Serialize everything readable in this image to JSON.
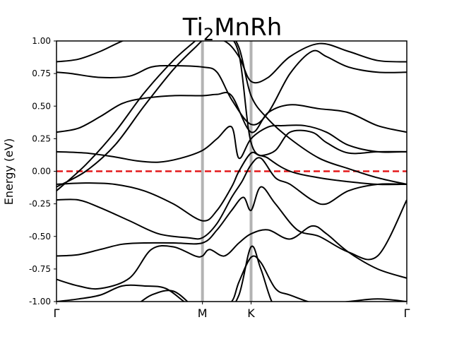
{
  "chart_data": {
    "type": "line",
    "title": {
      "main": "Ti",
      "sub": "2",
      "rest": "MnRh"
    },
    "ylabel": "Energy (eV)",
    "xlabel": "",
    "x_range": [
      0,
      2.4
    ],
    "ylim": [
      -1.0,
      1.0
    ],
    "y_ticks": [
      "-1.00",
      "-0.75",
      "-0.50",
      "-0.25",
      "0.00",
      "0.25",
      "0.50",
      "0.75",
      "1.00"
    ],
    "k_points": [
      {
        "label": "Γ",
        "x": 0.0
      },
      {
        "label": "M",
        "x": 1.0
      },
      {
        "label": "K",
        "x": 1.333
      },
      {
        "label": "Γ",
        "x": 2.4
      }
    ],
    "fermi_level": 0.0,
    "colors": {
      "bands": "#000000",
      "fermi": "#e41a1c",
      "kpath_lines": "#b3b3b3"
    },
    "series": [
      {
        "x": [
          0,
          0.15,
          0.3,
          0.5,
          0.7,
          0.85,
          1.0,
          1.15,
          1.25,
          1.333,
          1.45,
          1.6,
          1.8,
          2.0,
          2.2,
          2.4
        ],
        "y": [
          0.84,
          0.86,
          0.92,
          1.02,
          1.05,
          1.03,
          1.02,
          1.0,
          0.88,
          0.69,
          0.72,
          0.88,
          0.98,
          0.92,
          0.85,
          0.84
        ]
      },
      {
        "x": [
          0,
          0.1,
          0.3,
          0.5,
          0.65,
          0.8,
          1.0,
          1.1,
          1.2,
          1.333,
          1.45,
          1.6,
          1.75,
          1.85,
          2.0,
          2.2,
          2.4
        ],
        "y": [
          0.76,
          0.75,
          0.72,
          0.73,
          0.8,
          0.81,
          0.8,
          0.76,
          0.55,
          0.36,
          0.45,
          0.75,
          0.92,
          0.88,
          0.8,
          0.76,
          0.76
        ]
      },
      {
        "x": [
          0,
          0.15,
          0.3,
          0.45,
          0.6,
          0.8,
          1.0,
          1.1,
          1.2,
          1.333,
          1.45,
          1.6,
          1.8,
          2.0,
          2.2,
          2.4
        ],
        "y": [
          0.3,
          0.33,
          0.42,
          0.52,
          0.56,
          0.58,
          0.58,
          0.59,
          0.58,
          0.3,
          0.45,
          0.51,
          0.48,
          0.45,
          0.35,
          0.3
        ]
      },
      {
        "x": [
          0,
          0.2,
          0.4,
          0.55,
          0.7,
          0.85,
          1.0,
          1.1,
          1.2,
          1.25,
          1.333,
          1.45,
          1.55,
          1.7,
          1.85,
          2.0,
          2.2,
          2.4
        ],
        "y": [
          0.15,
          0.14,
          0.11,
          0.08,
          0.07,
          0.1,
          0.16,
          0.25,
          0.34,
          0.1,
          0.25,
          0.34,
          0.35,
          0.35,
          0.3,
          0.2,
          0.15,
          0.15
        ]
      },
      {
        "x": [
          0,
          0.2,
          0.4,
          0.6,
          0.8,
          1.0,
          1.1,
          1.2,
          1.25,
          1.333,
          1.4,
          1.5,
          1.6,
          1.75,
          1.85,
          2.0,
          2.2,
          2.4
        ],
        "y": [
          -0.1,
          -0.09,
          -0.1,
          -0.15,
          -0.25,
          -0.38,
          -0.3,
          -0.12,
          0.0,
          0.14,
          0.12,
          0.16,
          0.3,
          0.3,
          0.22,
          0.14,
          0.15,
          0.15
        ]
      },
      {
        "x": [
          0,
          0.15,
          0.3,
          0.5,
          0.7,
          0.9,
          1.0,
          1.1,
          1.2,
          1.27,
          1.333,
          1.4,
          1.5,
          1.6,
          1.75,
          1.85,
          2.0,
          2.2,
          2.4
        ],
        "y": [
          -0.22,
          -0.22,
          -0.28,
          -0.38,
          -0.48,
          -0.51,
          -0.51,
          -0.4,
          -0.2,
          -0.08,
          0.05,
          0.1,
          -0.05,
          -0.1,
          -0.22,
          -0.25,
          -0.15,
          -0.1,
          -0.1
        ]
      },
      {
        "x": [
          0,
          0.15,
          0.3,
          0.45,
          0.6,
          0.8,
          1.0,
          1.1,
          1.2,
          1.28,
          1.333,
          1.4,
          1.5,
          1.65,
          1.8,
          2.0,
          2.2,
          2.4
        ],
        "y": [
          -0.65,
          -0.64,
          -0.6,
          -0.56,
          -0.55,
          -0.55,
          -0.55,
          -0.45,
          -0.3,
          -0.2,
          -0.3,
          -0.12,
          -0.25,
          -0.45,
          -0.5,
          -0.62,
          -0.65,
          -0.22
        ]
      },
      {
        "x": [
          0,
          0.15,
          0.3,
          0.5,
          0.65,
          0.8,
          0.95,
          1.0,
          1.05,
          1.15,
          1.25,
          1.333,
          1.45,
          1.6,
          1.75,
          1.85,
          2.0,
          2.2,
          2.4
        ],
        "y": [
          -0.83,
          -0.88,
          -0.9,
          -0.82,
          -0.6,
          -0.58,
          -0.65,
          -0.65,
          -0.6,
          -0.65,
          -0.55,
          -0.48,
          -0.45,
          -0.52,
          -0.42,
          -0.48,
          -0.62,
          -0.75,
          -0.82
        ]
      },
      {
        "x": [
          0,
          0.15,
          0.3,
          0.45,
          0.6,
          0.75,
          0.9,
          1.0,
          1.1,
          1.2,
          1.25,
          1.333,
          1.4,
          1.5,
          1.6,
          1.8,
          2.0,
          2.2,
          2.4
        ],
        "y": [
          -1.0,
          -0.98,
          -0.95,
          -0.88,
          -0.88,
          -0.9,
          -1.02,
          -1.05,
          -1.05,
          -1.0,
          -0.85,
          -0.66,
          -0.7,
          -0.9,
          -0.95,
          -1.02,
          -1.0,
          -0.98,
          -1.0
        ]
      },
      {
        "x": [
          0,
          0.15,
          0.3,
          0.5,
          0.65,
          0.8,
          0.95,
          1.05,
          1.15,
          1.25,
          1.333,
          1.4,
          1.5,
          1.65,
          1.8,
          2.0,
          2.2,
          2.4
        ],
        "y": [
          -1.0,
          -1.02,
          -1.05,
          -1.05,
          -0.95,
          -0.92,
          -1.05,
          -1.1,
          -1.1,
          -0.95,
          -0.58,
          -0.75,
          -1.05,
          -1.1,
          -1.1,
          -1.08,
          -1.1,
          -1.05
        ]
      },
      {
        "x": [
          0,
          0.2,
          0.4,
          0.6,
          0.8,
          0.95,
          1.05,
          1.15,
          1.25,
          1.333,
          1.45,
          1.6,
          1.8,
          2.0,
          2.2,
          2.4
        ],
        "y": [
          -0.15,
          0.05,
          0.3,
          0.6,
          0.85,
          1.0,
          1.1,
          1.1,
          0.95,
          0.58,
          0.4,
          0.25,
          0.1,
          0.02,
          -0.05,
          -0.1
        ]
      },
      {
        "x": [
          0,
          0.2,
          0.4,
          0.6,
          0.8,
          0.95,
          1.05,
          1.15,
          1.25,
          1.333,
          1.45,
          1.6,
          1.8,
          2.0,
          2.2,
          2.4
        ],
        "y": [
          -0.12,
          0.0,
          0.2,
          0.5,
          0.78,
          0.95,
          1.05,
          1.05,
          0.9,
          0.22,
          0.1,
          0.0,
          -0.05,
          -0.08,
          -0.1,
          -0.1
        ]
      }
    ]
  }
}
